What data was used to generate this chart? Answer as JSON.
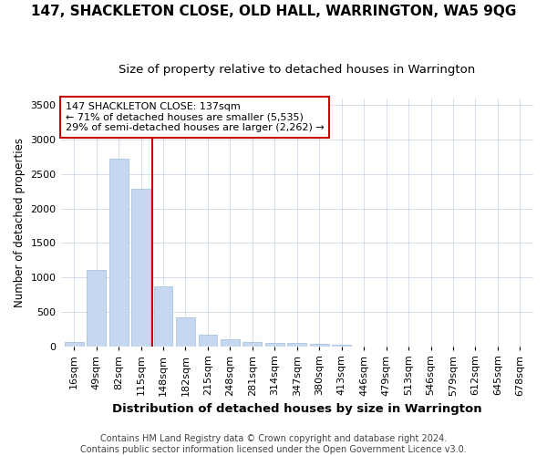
{
  "title": "147, SHACKLETON CLOSE, OLD HALL, WARRINGTON, WA5 9QG",
  "subtitle": "Size of property relative to detached houses in Warrington",
  "xlabel": "Distribution of detached houses by size in Warrington",
  "ylabel": "Number of detached properties",
  "categories": [
    "16sqm",
    "49sqm",
    "82sqm",
    "115sqm",
    "148sqm",
    "182sqm",
    "215sqm",
    "248sqm",
    "281sqm",
    "314sqm",
    "347sqm",
    "380sqm",
    "413sqm",
    "446sqm",
    "479sqm",
    "513sqm",
    "546sqm",
    "579sqm",
    "612sqm",
    "645sqm",
    "678sqm"
  ],
  "values": [
    55,
    1110,
    2720,
    2280,
    870,
    420,
    170,
    100,
    55,
    50,
    50,
    35,
    25,
    0,
    0,
    0,
    0,
    0,
    0,
    0,
    0
  ],
  "bar_color": "#c5d8f0",
  "bar_edgecolor": "#a0bcdc",
  "vline_color": "#cc0000",
  "vline_x_index": 4,
  "annotation_text": "147 SHACKLETON CLOSE: 137sqm\n← 71% of detached houses are smaller (5,535)\n29% of semi-detached houses are larger (2,262) →",
  "annotation_box_facecolor": "white",
  "annotation_box_edgecolor": "#cc0000",
  "footnote": "Contains HM Land Registry data © Crown copyright and database right 2024.\nContains public sector information licensed under the Open Government Licence v3.0.",
  "ylim": [
    0,
    3600
  ],
  "background_color": "#ffffff",
  "plot_bg_color": "#ffffff",
  "grid_color": "#d0d8e8",
  "title_fontsize": 11,
  "subtitle_fontsize": 9.5,
  "ylabel_fontsize": 8.5,
  "xlabel_fontsize": 9.5,
  "tick_fontsize": 8,
  "annotation_fontsize": 8,
  "footnote_fontsize": 7
}
